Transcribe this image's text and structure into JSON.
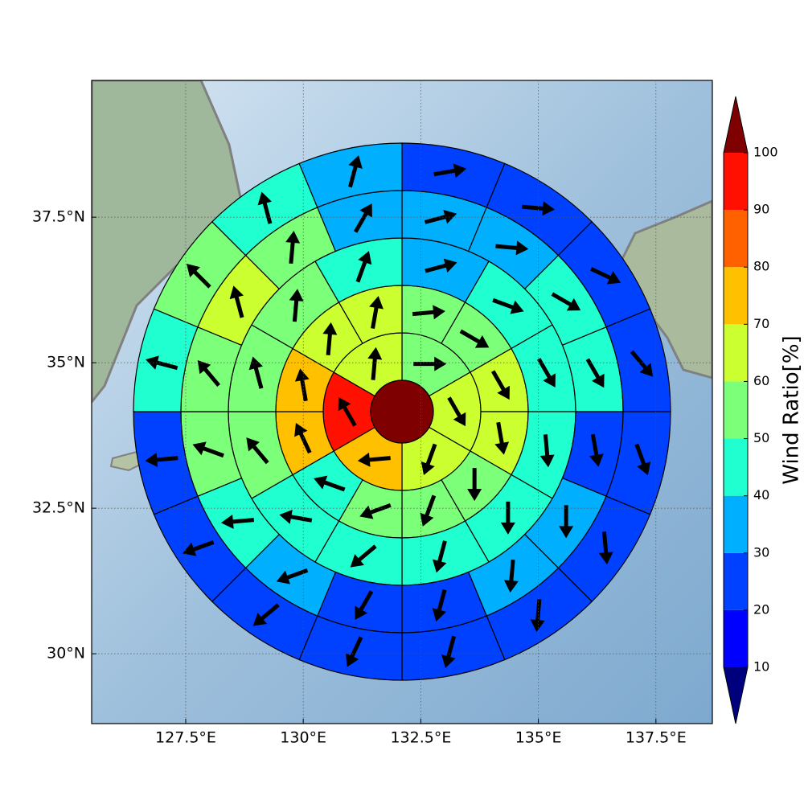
{
  "chart_data": {
    "type": "polar-wind",
    "xlim": [
      125.5,
      138.7
    ],
    "ylim": [
      28.8,
      39.85
    ],
    "xticks": [
      {
        "value": 127.5,
        "label": "127.5°E"
      },
      {
        "value": 130,
        "label": "130°E"
      },
      {
        "value": 132.5,
        "label": "132.5°E"
      },
      {
        "value": 135,
        "label": "135°E"
      },
      {
        "value": 137.5,
        "label": "137.5°E"
      }
    ],
    "yticks": [
      {
        "value": 30,
        "label": "30°N"
      },
      {
        "value": 32.5,
        "label": "32.5°N"
      },
      {
        "value": 35,
        "label": "35°N"
      },
      {
        "value": 37.5,
        "label": "37.5°N"
      }
    ],
    "grid": true,
    "center": {
      "value": 105
    },
    "rings": [
      {
        "values": [
          55,
          65,
          65,
          75,
          95,
          65
        ],
        "directions": [
          90,
          150,
          200,
          265,
          330,
          5
        ]
      },
      {
        "values": [
          55,
          55,
          65,
          65,
          55,
          55,
          55,
          45,
          75,
          75,
          65,
          65
        ],
        "directions": [
          85,
          120,
          150,
          170,
          180,
          200,
          250,
          290,
          335,
          350,
          5,
          10
        ]
      },
      {
        "values": [
          35,
          45,
          45,
          45,
          45,
          45,
          45,
          45,
          55,
          55,
          55,
          45
        ],
        "directions": [
          75,
          110,
          150,
          175,
          180,
          195,
          230,
          280,
          320,
          345,
          5,
          20
        ]
      },
      {
        "values": [
          35,
          35,
          45,
          45,
          25,
          35,
          35,
          25,
          25,
          35,
          45,
          55,
          55,
          65,
          55,
          35
        ],
        "directions": [
          75,
          95,
          120,
          150,
          170,
          180,
          185,
          195,
          210,
          250,
          265,
          290,
          320,
          345,
          5,
          30
        ]
      },
      {
        "values": [
          25,
          25,
          25,
          25,
          25,
          25,
          25,
          25,
          25,
          25,
          25,
          25,
          45,
          55,
          45,
          35
        ],
        "directions": [
          80,
          95,
          115,
          140,
          160,
          175,
          185,
          195,
          205,
          230,
          250,
          265,
          285,
          315,
          345,
          15
        ]
      }
    ],
    "colorbar": {
      "label": "Wind Ratio[%]",
      "ticks": [
        10,
        20,
        30,
        40,
        50,
        60,
        70,
        80,
        90,
        100
      ],
      "colors": [
        "#0000ff",
        "#0040ff",
        "#00b0ff",
        "#20ffd0",
        "#7cff79",
        "#ccff30",
        "#ffc000",
        "#ff6000",
        "#ff1000"
      ],
      "under": "#00007f",
      "over": "#7f0000"
    }
  }
}
